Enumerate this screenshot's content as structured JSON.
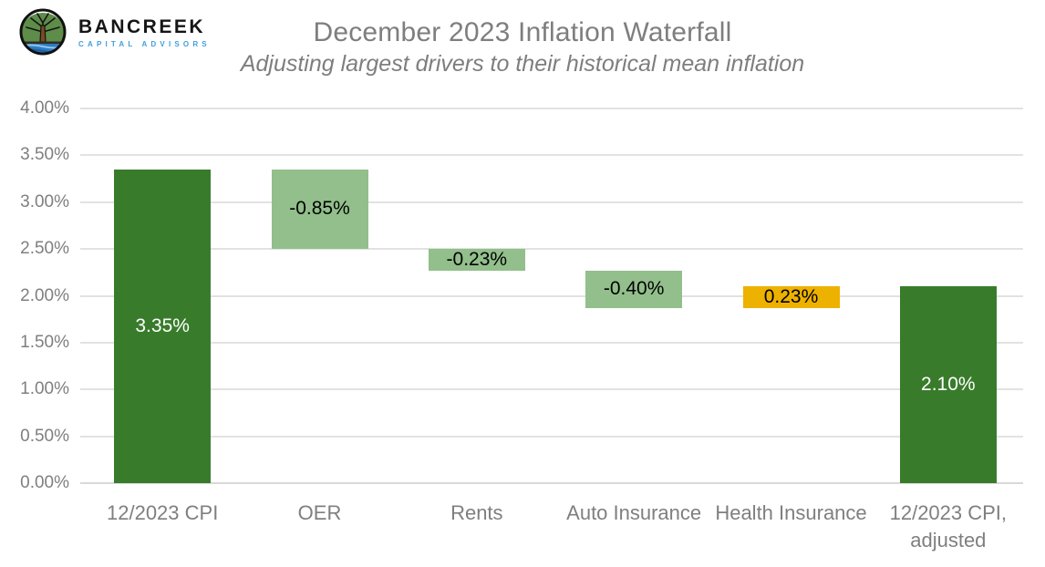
{
  "branding": {
    "logo_icon": "bancreek-tree-logo",
    "name": "BANCREEK",
    "tagline": "CAPITAL ADVISORS"
  },
  "header": {
    "title": "December 2023 Inflation Waterfall",
    "subtitle": "Adjusting largest drivers to their historical mean inflation"
  },
  "chart_data": {
    "type": "bar",
    "subtype": "waterfall",
    "title": "December 2023 Inflation Waterfall",
    "subtitle": "Adjusting largest drivers to their historical mean inflation",
    "xlabel": "",
    "ylabel": "",
    "ylim": [
      0,
      4
    ],
    "grid": "horizontal",
    "legend": "none",
    "yticks": [
      {
        "label": "4.00%",
        "value": 4.0
      },
      {
        "label": "3.50%",
        "value": 3.5
      },
      {
        "label": "3.00%",
        "value": 3.0
      },
      {
        "label": "2.50%",
        "value": 2.5
      },
      {
        "label": "2.00%",
        "value": 2.0
      },
      {
        "label": "1.50%",
        "value": 1.5
      },
      {
        "label": "1.00%",
        "value": 1.0
      },
      {
        "label": "0.50%",
        "value": 0.5
      },
      {
        "label": "0.00%",
        "value": 0.0
      }
    ],
    "bars": [
      {
        "category": "12/2023 CPI",
        "label": "3.35%",
        "delta": 3.35,
        "from": 0.0,
        "to": 3.35,
        "role": "total"
      },
      {
        "category": "OER",
        "label": "-0.85%",
        "delta": -0.85,
        "from": 3.35,
        "to": 2.5,
        "role": "decrease"
      },
      {
        "category": "Rents",
        "label": "-0.23%",
        "delta": -0.23,
        "from": 2.5,
        "to": 2.27,
        "role": "decrease"
      },
      {
        "category": "Auto Insurance",
        "label": "-0.40%",
        "delta": -0.4,
        "from": 2.27,
        "to": 1.87,
        "role": "decrease"
      },
      {
        "category": "Health Insurance",
        "label": "0.23%",
        "delta": 0.23,
        "from": 1.87,
        "to": 2.1,
        "role": "increase"
      },
      {
        "category": "12/2023 CPI, adjusted",
        "label": "2.10%",
        "delta": 2.1,
        "from": 0.0,
        "to": 2.1,
        "role": "total"
      }
    ],
    "colors": {
      "total": "#387C2B",
      "decrease": "#92BF8B",
      "increase": "#EDB100",
      "label_on_total": "#FFFFFF",
      "label_on_delta": "#000000",
      "axis_text": "#7F7F7F",
      "gridline": "#E2E2E2",
      "title_text": "#7E7E7E"
    }
  }
}
